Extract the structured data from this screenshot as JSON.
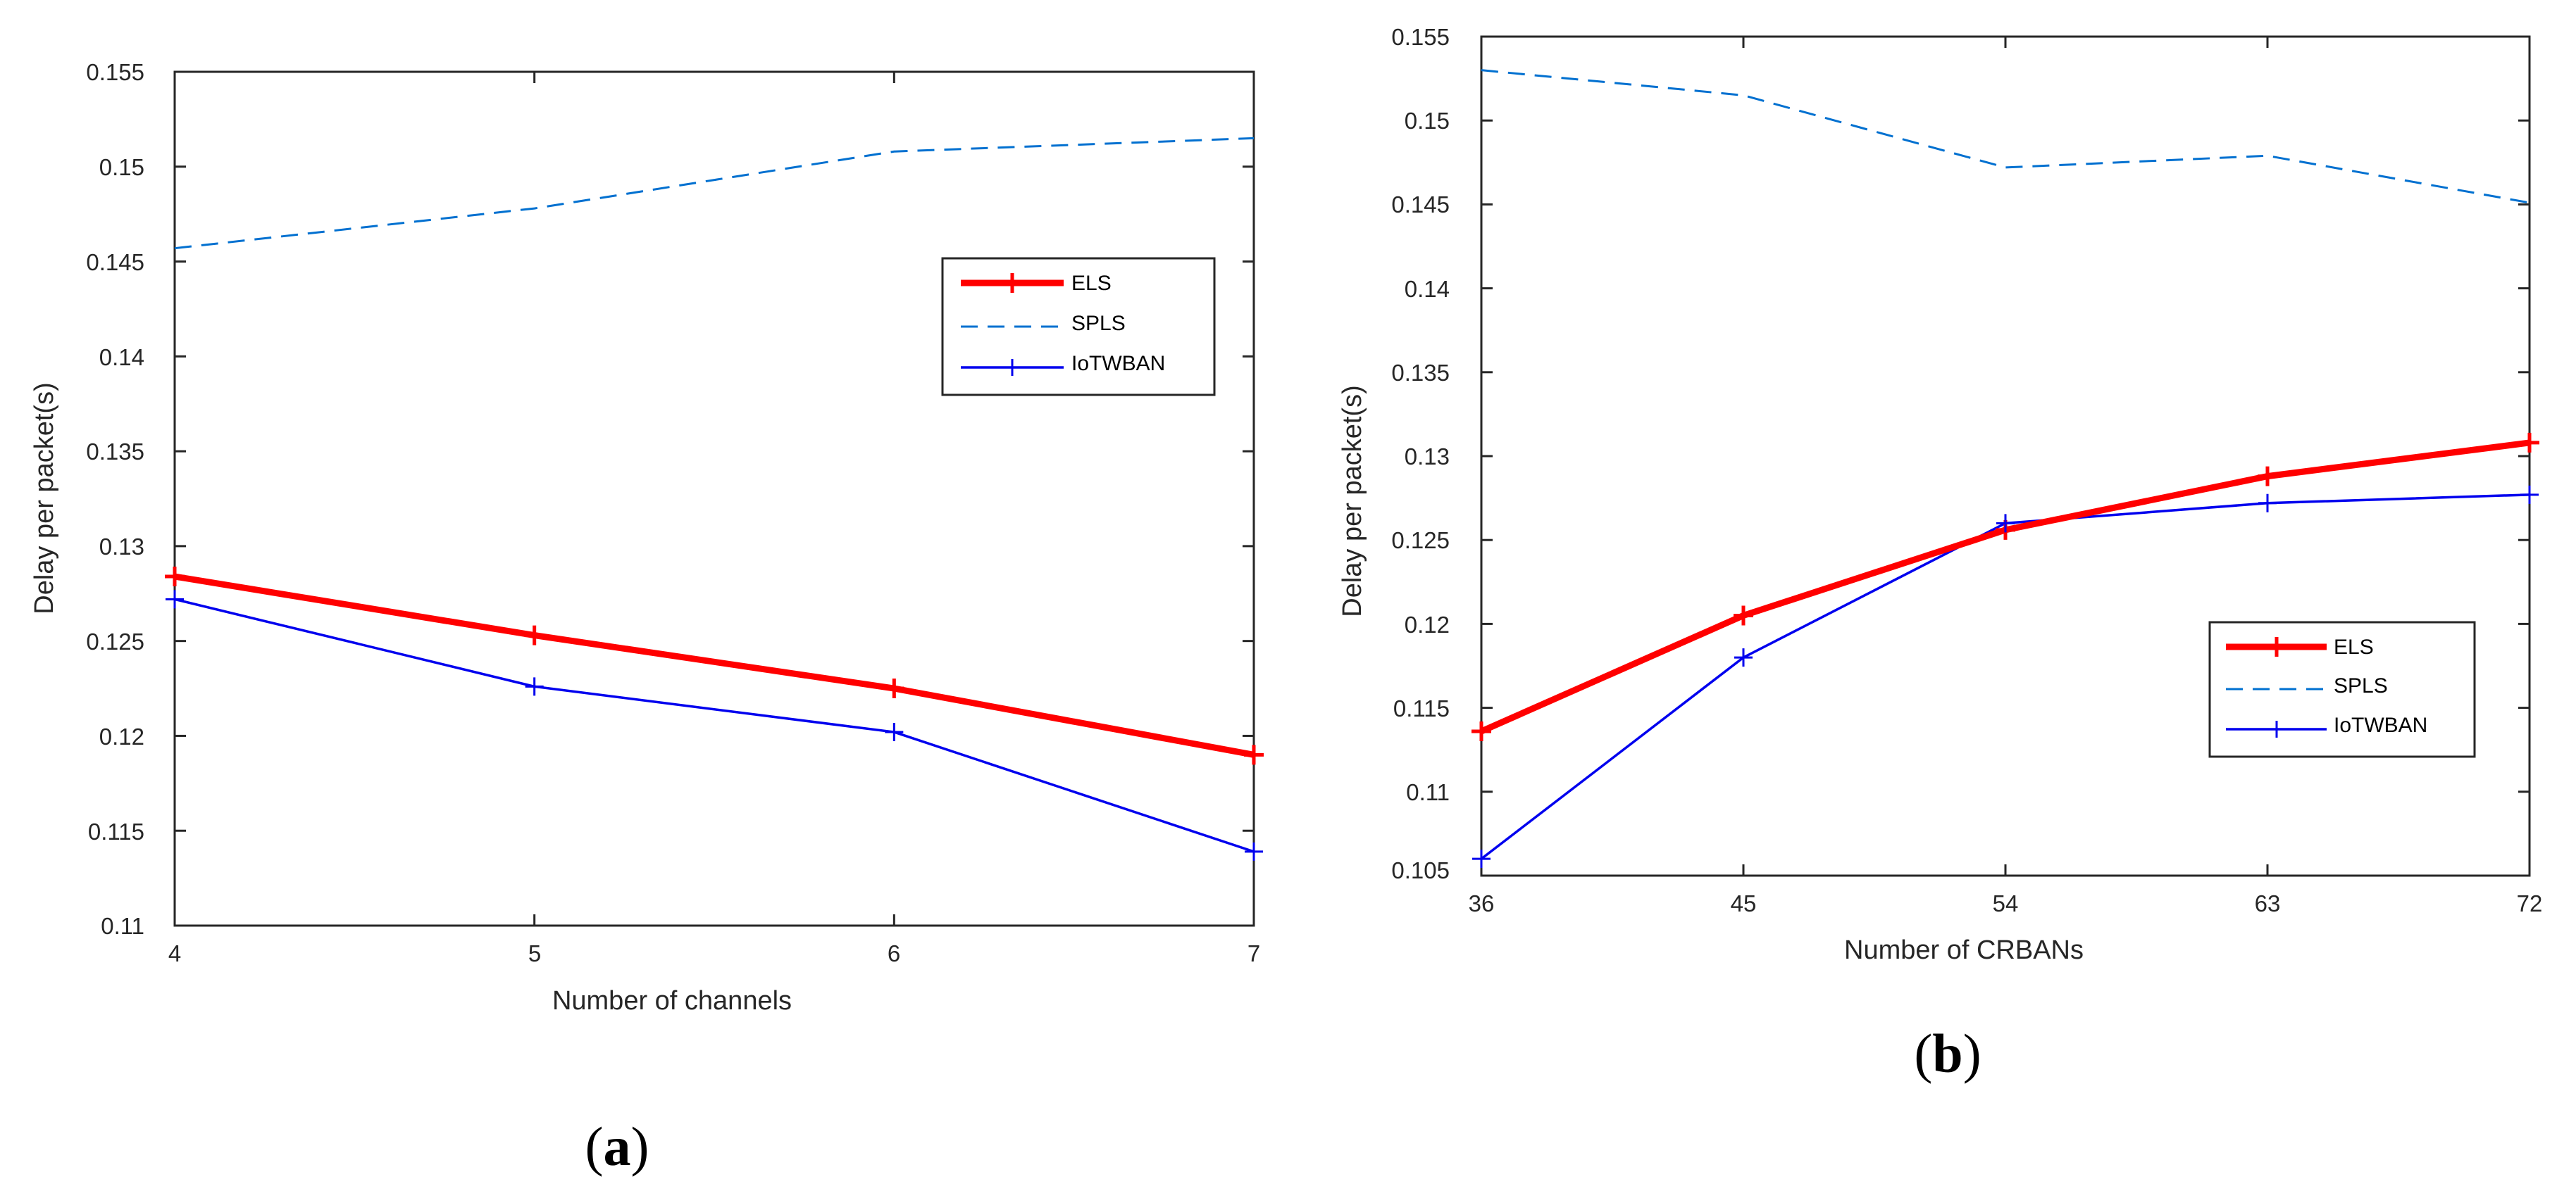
{
  "chart_data": [
    {
      "type": "line",
      "panel_label_open": "(",
      "panel_label_letter": "a",
      "panel_label_close": ")",
      "xlabel": "Number of channels",
      "ylabel": "Delay per packet(s)",
      "xlim": [
        4,
        7
      ],
      "ylim": [
        0.11,
        0.155
      ],
      "xticks": [
        4,
        5,
        6,
        7
      ],
      "xtick_labels": [
        "4",
        "5",
        "6",
        "7"
      ],
      "yticks": [
        0.11,
        0.115,
        0.12,
        0.125,
        0.13,
        0.135,
        0.14,
        0.145,
        0.15,
        0.155
      ],
      "ytick_labels": [
        "0.11",
        "0.115",
        "0.12",
        "0.125",
        "0.13",
        "0.135",
        "0.14",
        "0.145",
        "0.15",
        "0.155"
      ],
      "legend_position": "upper-right",
      "x": [
        4,
        5,
        6,
        7
      ],
      "series": [
        {
          "name": "ELS",
          "values": [
            0.1284,
            0.1253,
            0.1225,
            0.119
          ],
          "color": "#ff0000",
          "style": "solid-thick-plus"
        },
        {
          "name": "SPLS",
          "values": [
            0.1457,
            0.1478,
            0.1508,
            0.1515
          ],
          "color": "#0070d0",
          "style": "dashed"
        },
        {
          "name": "IoTWBAN",
          "values": [
            0.1272,
            0.1226,
            0.1202,
            0.1139
          ],
          "color": "#0000ee",
          "style": "solid-thin-plus"
        }
      ]
    },
    {
      "type": "line",
      "panel_label_open": "(",
      "panel_label_letter": "b",
      "panel_label_close": ")",
      "xlabel": "Number of CRBANs",
      "ylabel": "Delay per packet(s)",
      "xlim": [
        36,
        72
      ],
      "ylim": [
        0.105,
        0.155
      ],
      "xticks": [
        36,
        45,
        54,
        63,
        72
      ],
      "xtick_labels": [
        "36",
        "45",
        "54",
        "63",
        "72"
      ],
      "yticks": [
        0.105,
        0.11,
        0.115,
        0.12,
        0.125,
        0.13,
        0.135,
        0.14,
        0.145,
        0.15,
        0.155
      ],
      "ytick_labels": [
        "0.105",
        "0.11",
        "0.115",
        "0.12",
        "0.125",
        "0.13",
        "0.135",
        "0.14",
        "0.145",
        "0.15",
        "0.155"
      ],
      "legend_position": "lower-right",
      "x": [
        36,
        45,
        54,
        63,
        72
      ],
      "series": [
        {
          "name": "ELS",
          "values": [
            0.1136,
            0.1205,
            0.1256,
            0.1288,
            0.1308
          ],
          "color": "#ff0000",
          "style": "solid-thick-plus"
        },
        {
          "name": "SPLS",
          "values": [
            0.153,
            0.1515,
            0.1472,
            0.1479,
            0.1451
          ],
          "color": "#0070d0",
          "style": "dashed"
        },
        {
          "name": "IoTWBAN",
          "values": [
            0.106,
            0.118,
            0.126,
            0.1272,
            0.1277
          ],
          "color": "#0000ee",
          "style": "solid-thin-plus"
        }
      ]
    }
  ]
}
